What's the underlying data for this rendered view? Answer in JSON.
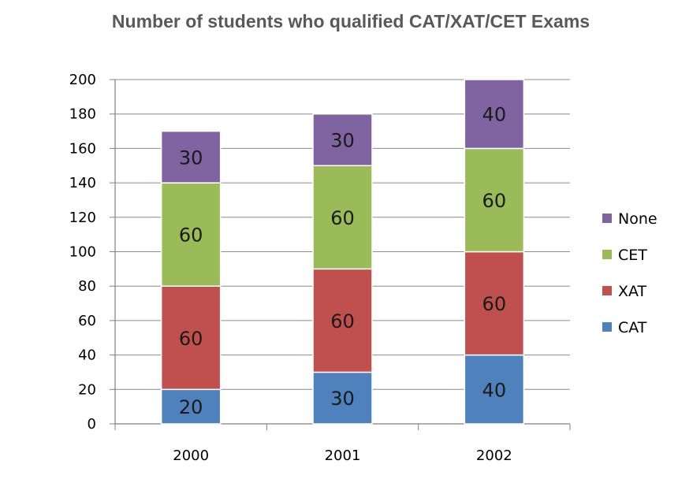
{
  "chart_data": {
    "type": "bar",
    "stacked": true,
    "title": "Number of students who qualified CAT/XAT/CET Exams",
    "xlabel": "",
    "ylabel": "",
    "categories": [
      "2000",
      "2001",
      "2002"
    ],
    "ylim": [
      0,
      200
    ],
    "yticks": [
      0,
      20,
      40,
      60,
      80,
      100,
      120,
      140,
      160,
      180,
      200
    ],
    "grid": true,
    "legend_position": "right",
    "series": [
      {
        "name": "CAT",
        "values": [
          20,
          30,
          40
        ],
        "color": "#4f81bd"
      },
      {
        "name": "XAT",
        "values": [
          60,
          60,
          60
        ],
        "color": "#c0504d"
      },
      {
        "name": "CET",
        "values": [
          60,
          60,
          60
        ],
        "color": "#9bbb59"
      },
      {
        "name": "None",
        "values": [
          30,
          30,
          40
        ],
        "color": "#8064a2"
      }
    ]
  }
}
